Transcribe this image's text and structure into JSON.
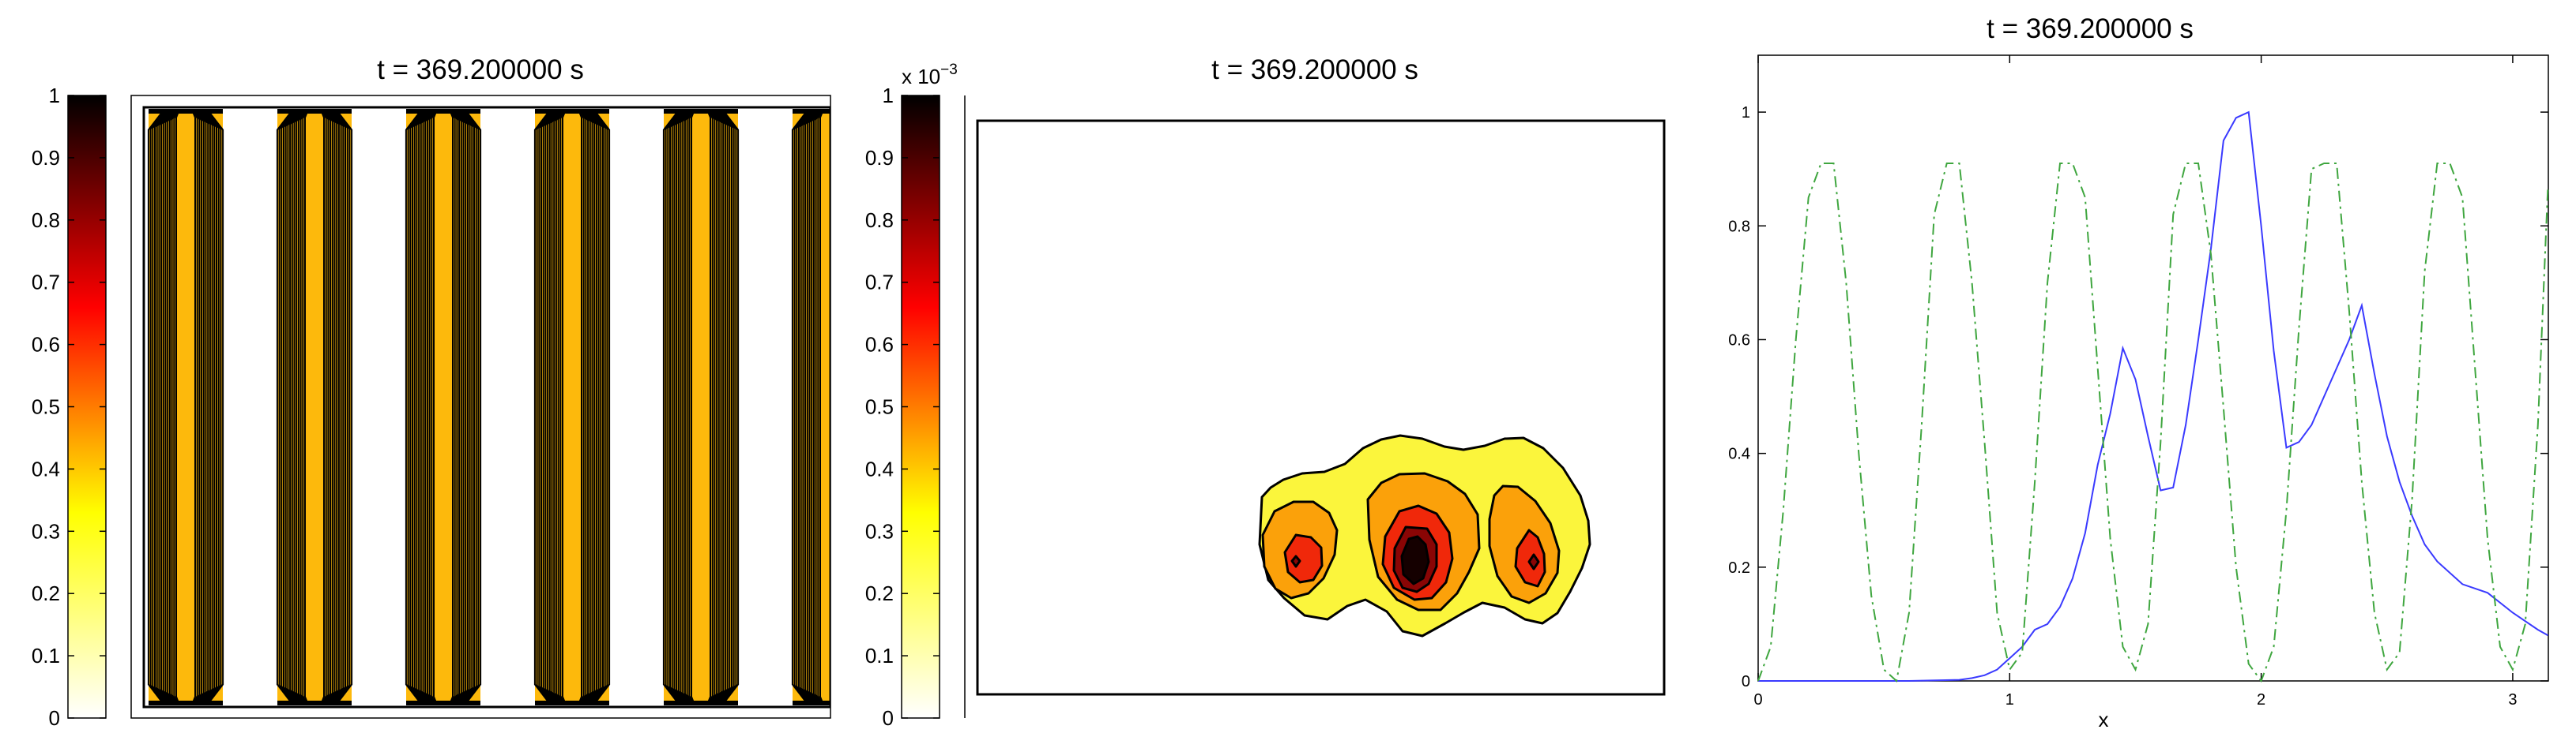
{
  "panels": [
    {
      "title": "t = 369.200000 s",
      "colorbar": {
        "ticks": [
          "0",
          "0.1",
          "0.2",
          "0.3",
          "0.4",
          "0.5",
          "0.6",
          "0.7",
          "0.8",
          "0.9",
          "1"
        ],
        "multiplier": ""
      },
      "stripe_count": 6
    },
    {
      "title": "t = 369.200000 s",
      "colorbar": {
        "ticks": [
          "0",
          "0.1",
          "0.2",
          "0.3",
          "0.4",
          "0.5",
          "0.6",
          "0.7",
          "0.8",
          "0.9",
          "1"
        ],
        "multiplier": "x 10"
      },
      "multiplier_exponent": "−3"
    }
  ],
  "colormap": "hot-reversed",
  "colors": {
    "contour_yellow": "#fbf53c",
    "contour_orange": "#fba10a",
    "contour_red": "#f0280a",
    "contour_darkred": "#8a0505",
    "contour_black": "#150000",
    "stripe_fill": "#fdb90c",
    "line_blue": "#3a3aff",
    "line_green": "#3fa63f"
  },
  "chart_data": {
    "type": "line",
    "title": "t = 369.200000 s",
    "xlabel": "x",
    "ylabel": "",
    "xlim": [
      0,
      3.14159
    ],
    "ylim": [
      0,
      1.1
    ],
    "xticks": [
      "0",
      "1",
      "2",
      "3"
    ],
    "yticks": [
      "0",
      "0.2",
      "0.4",
      "0.6",
      "0.8",
      "1"
    ],
    "grid": false,
    "series": [
      {
        "style": "solid",
        "color": "#3a3aff",
        "x": [
          0,
          0.3,
          0.6,
          0.8,
          0.85,
          0.9,
          0.95,
          1.0,
          1.05,
          1.1,
          1.15,
          1.2,
          1.25,
          1.3,
          1.35,
          1.4,
          1.45,
          1.5,
          1.55,
          1.6,
          1.65,
          1.7,
          1.75,
          1.8,
          1.85,
          1.9,
          1.95,
          2.0,
          2.05,
          2.1,
          2.15,
          2.2,
          2.25,
          2.3,
          2.35,
          2.4,
          2.45,
          2.5,
          2.55,
          2.6,
          2.65,
          2.7,
          2.8,
          2.9,
          3.0,
          3.1,
          3.14
        ],
        "y": [
          0,
          0,
          0,
          0.002,
          0.005,
          0.01,
          0.02,
          0.04,
          0.06,
          0.09,
          0.1,
          0.13,
          0.18,
          0.26,
          0.38,
          0.47,
          0.585,
          0.53,
          0.43,
          0.335,
          0.34,
          0.45,
          0.6,
          0.76,
          0.95,
          0.99,
          1.0,
          0.8,
          0.58,
          0.41,
          0.42,
          0.45,
          0.5,
          0.55,
          0.6,
          0.66,
          0.54,
          0.43,
          0.35,
          0.29,
          0.24,
          0.21,
          0.17,
          0.155,
          0.12,
          0.09,
          0.08
        ]
      },
      {
        "style": "dashdot",
        "color": "#3fa63f",
        "x": [
          0,
          0.05,
          0.1,
          0.15,
          0.2,
          0.25,
          0.3,
          0.35,
          0.4,
          0.45,
          0.5,
          0.55,
          0.6,
          0.65,
          0.7,
          0.75,
          0.8,
          0.85,
          0.9,
          0.95,
          1.0,
          1.05,
          1.1,
          1.15,
          1.2,
          1.25,
          1.3,
          1.35,
          1.4,
          1.45,
          1.5,
          1.55,
          1.6,
          1.65,
          1.7,
          1.75,
          1.8,
          1.85,
          1.9,
          1.95,
          2.0,
          2.05,
          2.1,
          2.15,
          2.2,
          2.25,
          2.3,
          2.35,
          2.4,
          2.45,
          2.5,
          2.55,
          2.6,
          2.65,
          2.7,
          2.75,
          2.8,
          2.85,
          2.9,
          2.95,
          3.0,
          3.05,
          3.1,
          3.14
        ],
        "y": [
          0,
          0.06,
          0.3,
          0.6,
          0.85,
          0.91,
          0.91,
          0.7,
          0.4,
          0.15,
          0.02,
          0,
          0.12,
          0.45,
          0.82,
          0.91,
          0.91,
          0.7,
          0.42,
          0.12,
          0.02,
          0.05,
          0.35,
          0.7,
          0.91,
          0.91,
          0.85,
          0.55,
          0.25,
          0.06,
          0.02,
          0.1,
          0.42,
          0.82,
          0.91,
          0.91,
          0.75,
          0.48,
          0.2,
          0.03,
          0,
          0.06,
          0.3,
          0.62,
          0.9,
          0.91,
          0.91,
          0.65,
          0.35,
          0.12,
          0.02,
          0.05,
          0.32,
          0.72,
          0.91,
          0.91,
          0.85,
          0.55,
          0.25,
          0.06,
          0.02,
          0.1,
          0.45,
          0.87
        ]
      }
    ]
  }
}
